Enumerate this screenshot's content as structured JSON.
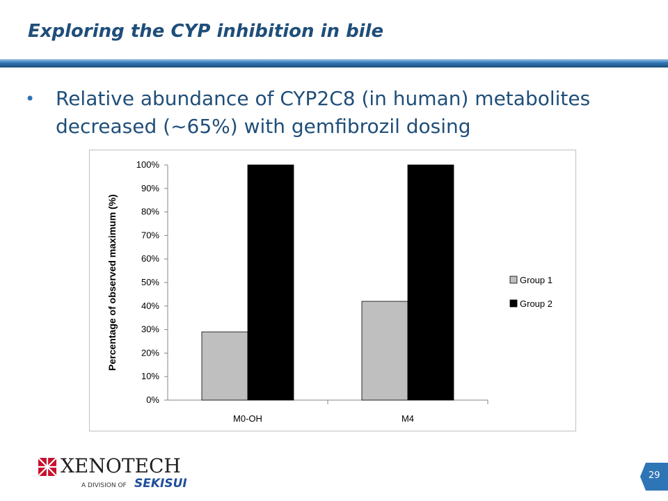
{
  "slide": {
    "title": "Exploring the CYP inhibition in bile",
    "bullets": [
      "Relative abundance of CYP2C8 (in human) metabolites decreased (~65%) with gemfibrozil dosing"
    ],
    "page_number": "29",
    "logo": {
      "name": "XENOTECH",
      "division": "A DIVISION OF",
      "parent": "SEKISUI"
    },
    "colors": {
      "title": "#1f4e79",
      "accent": "#2e75b6",
      "sekisui": "#1f4e9c"
    }
  },
  "chart_data": {
    "type": "bar",
    "title": "",
    "xlabel": "",
    "ylabel": "Percentage of observed maximum (%)",
    "categories": [
      "M0-OH",
      "M4"
    ],
    "series": [
      {
        "name": "Group 1",
        "values": [
          29,
          42
        ],
        "color": "#bfbfbf"
      },
      {
        "name": "Group 2",
        "values": [
          100,
          100
        ],
        "color": "#000000"
      }
    ],
    "ylim": [
      0,
      100
    ],
    "yticks": [
      0,
      10,
      20,
      30,
      40,
      50,
      60,
      70,
      80,
      90,
      100
    ],
    "ytick_labels": [
      "0%",
      "10%",
      "20%",
      "30%",
      "40%",
      "50%",
      "60%",
      "70%",
      "80%",
      "90%",
      "100%"
    ],
    "grid": false,
    "legend_position": "right"
  }
}
